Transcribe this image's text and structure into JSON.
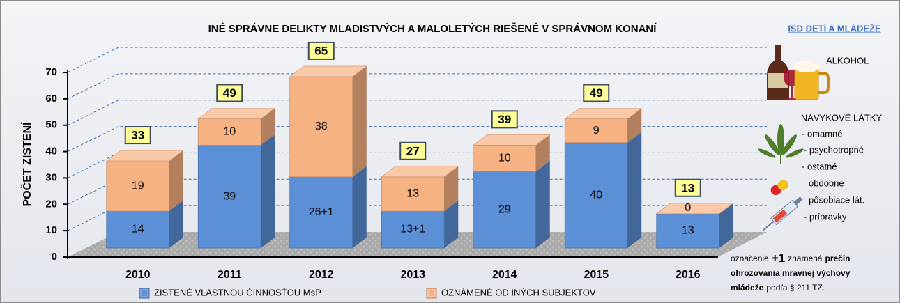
{
  "chart_data": {
    "type": "bar3d-stacked",
    "title": "INÉ SPRÁVNE DELIKTY MLADISTVÝCH A MALOLETÝCH RIEŠENÉ V SPRÁVNOM KONANÍ",
    "y_label": "POČET ZISTENÍ",
    "categories": [
      "2010",
      "2011",
      "2012",
      "2013",
      "2014",
      "2015",
      "2016"
    ],
    "series": [
      {
        "name": "ZISTENÉ VLASTNOU ČINNOSŤOU MsP",
        "color": "#5b8fd6",
        "values": [
          14,
          39,
          27,
          14,
          29,
          40,
          13
        ],
        "value_labels": [
          "14",
          "39",
          "26+1",
          "13+1",
          "29",
          "40",
          "13"
        ]
      },
      {
        "name": "OZNÁMENÉ OD INÝCH SUBJEKTOV",
        "color": "#f7b283",
        "values": [
          19,
          10,
          38,
          13,
          10,
          9,
          0
        ]
      }
    ],
    "totals": [
      33,
      49,
      65,
      27,
      39,
      49,
      13
    ],
    "ylim": [
      0,
      70
    ],
    "yticks": [
      0,
      10,
      20,
      30,
      40,
      50,
      60,
      70
    ],
    "grid": true,
    "side_panel": {
      "link": "ISD DETÍ A MLÁDEŽE",
      "alcohol": "ALKOHOL",
      "drugs_title": "NÁVYKOVÉ LÁTKY",
      "drugs": [
        "- omamné",
        "- psychotropné",
        "- ostatné",
        "obdobne",
        "pôsobiace lát.",
        "- prípravky"
      ],
      "note": [
        [
          {
            "text": "označenie",
            "bold": false
          },
          {
            "text": "+1",
            "bold": true,
            "big": true
          },
          {
            "text": "znamená",
            "bold": false
          },
          {
            "text": "prečin",
            "bold": true
          }
        ],
        [
          {
            "text": "ohrozovania mravnej výchovy",
            "bold": true
          }
        ],
        [
          {
            "text": "mládeže",
            "bold": true
          },
          {
            "text": "podľa § 211 TZ.",
            "bold": false
          }
        ]
      ]
    }
  }
}
